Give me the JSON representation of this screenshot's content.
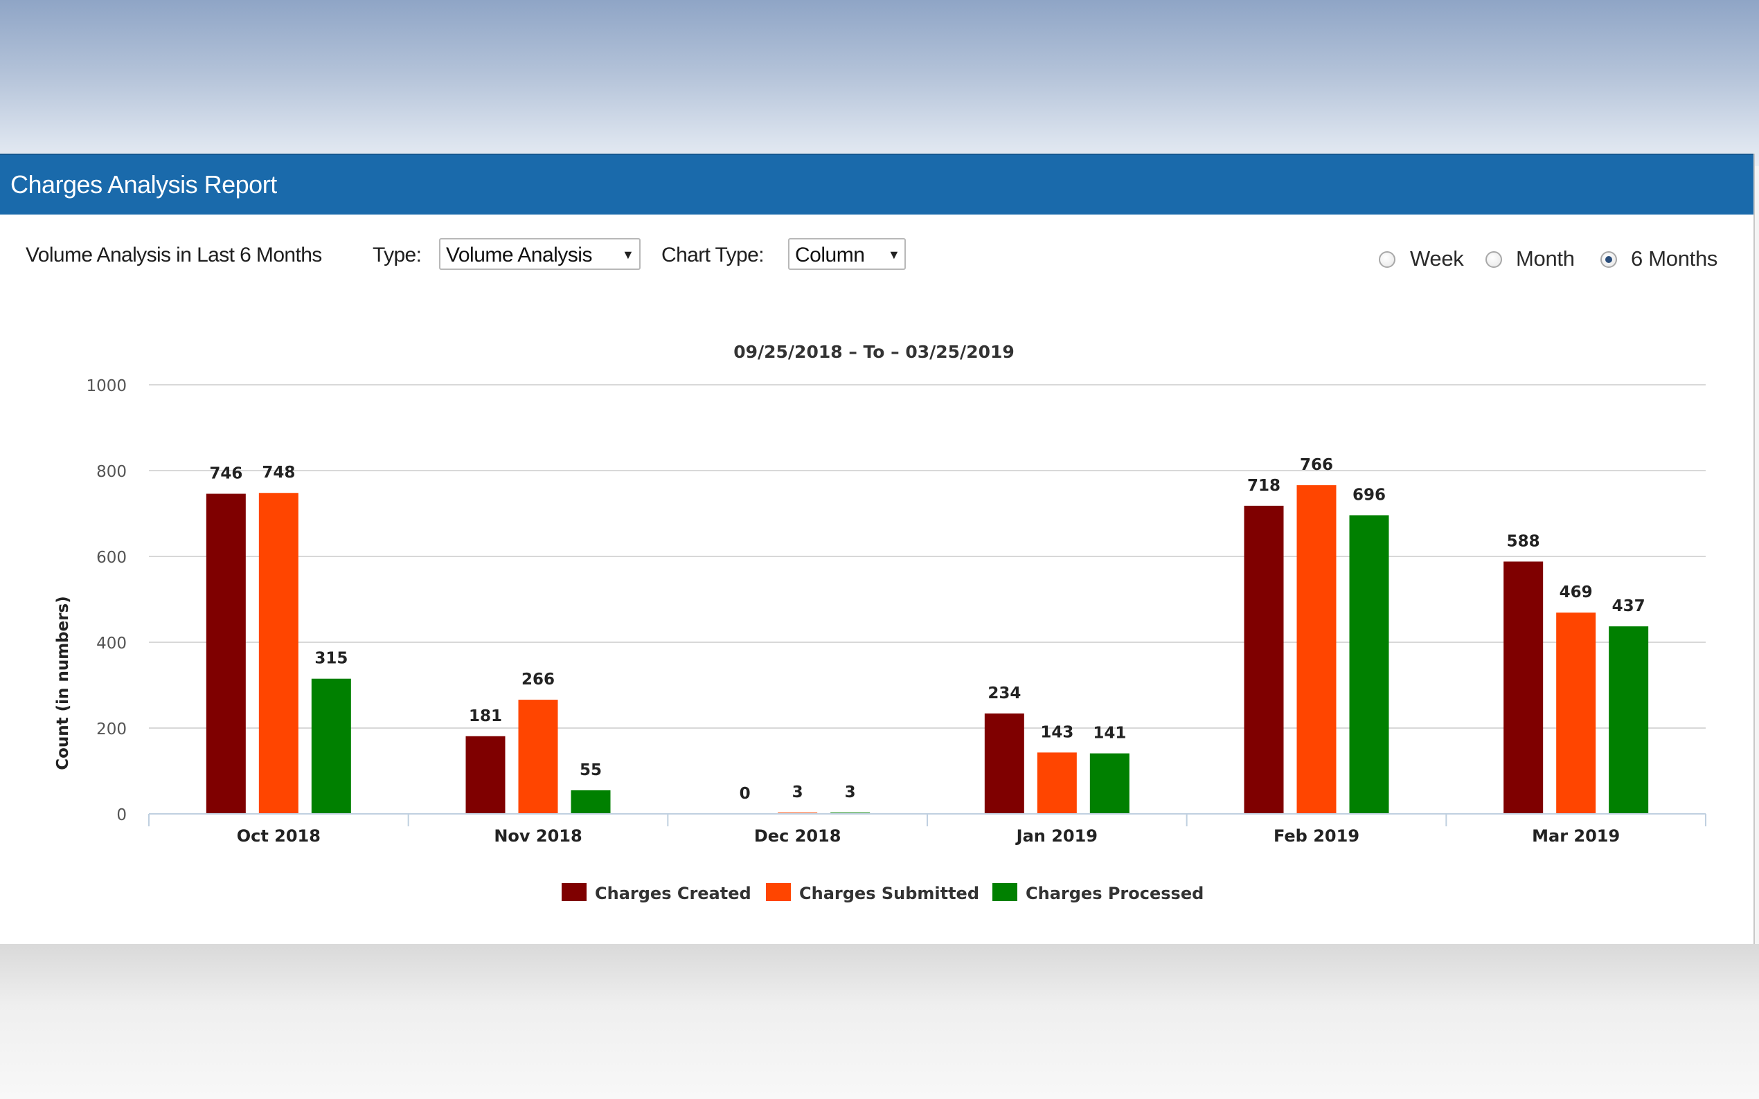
{
  "report": {
    "title": "Charges Analysis Report"
  },
  "toolbar": {
    "heading": "Volume Analysis in Last 6 Months",
    "type_label": "Type:",
    "type_value": "Volume Analysis",
    "chart_type_label": "Chart Type:",
    "chart_type_value": "Column"
  },
  "period": {
    "options": [
      {
        "label": "Week",
        "selected": false
      },
      {
        "label": "Month",
        "selected": false
      },
      {
        "label": "6 Months",
        "selected": true
      }
    ]
  },
  "chart_data": {
    "type": "bar",
    "title": "09/25/2018 – To – 03/25/2019",
    "xlabel": "",
    "ylabel": "Count (in numbers)",
    "ylim": [
      0,
      1000
    ],
    "yticks": [
      0,
      200,
      400,
      600,
      800,
      1000
    ],
    "grid": true,
    "legend_position": "bottom-center",
    "categories": [
      "Oct 2018",
      "Nov 2018",
      "Dec 2018",
      "Jan 2019",
      "Feb 2019",
      "Mar 2019"
    ],
    "series": [
      {
        "name": "Charges Created",
        "color": "#7f0000",
        "values": [
          746,
          181,
          0,
          234,
          718,
          588
        ]
      },
      {
        "name": "Charges Submitted",
        "color": "#ff4500",
        "values": [
          748,
          266,
          3,
          143,
          766,
          469
        ]
      },
      {
        "name": "Charges Processed",
        "color": "#008000",
        "values": [
          315,
          55,
          3,
          141,
          696,
          437
        ]
      }
    ]
  }
}
